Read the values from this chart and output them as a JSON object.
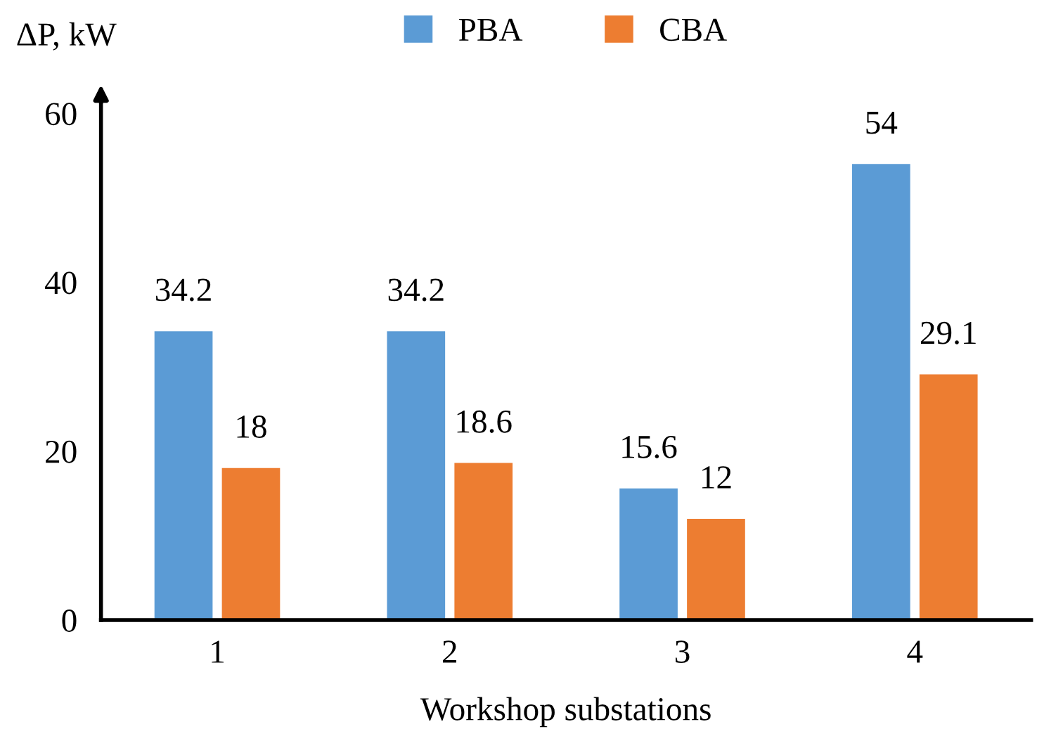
{
  "chart_data": {
    "type": "bar",
    "xlabel": "Workshop substations",
    "ylabel": "ΔP, kW",
    "categories": [
      "1",
      "2",
      "3",
      "4"
    ],
    "series": [
      {
        "name": "PBA",
        "color": "#5b9bd5",
        "values": [
          34.2,
          34.2,
          15.6,
          54
        ]
      },
      {
        "name": "CBA",
        "color": "#ed7d31",
        "values": [
          18,
          18.6,
          12,
          29.1
        ]
      }
    ],
    "ylim": [
      0,
      62
    ],
    "yticks": [
      0,
      20,
      40,
      60
    ],
    "grid": false,
    "legend": "top",
    "data_labels": true
  }
}
